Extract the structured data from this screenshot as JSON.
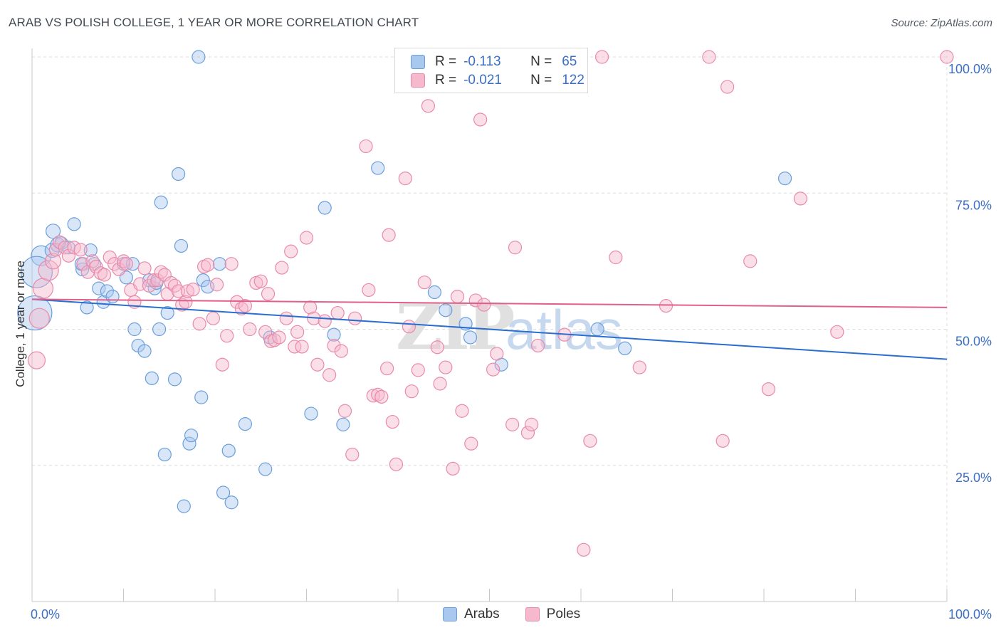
{
  "header": {
    "title": "ARAB VS POLISH COLLEGE, 1 YEAR OR MORE CORRELATION CHART",
    "source": "Source: ZipAtlas.com"
  },
  "watermark": {
    "zip": "ZIP",
    "atlas": "atlas"
  },
  "legend_top": {
    "rows": [
      {
        "r_label": "R =",
        "r_value": "-0.113",
        "n_label": "N =",
        "n_value": "65"
      },
      {
        "r_label": "R =",
        "r_value": "-0.021",
        "n_label": "N =",
        "n_value": "122"
      }
    ]
  },
  "legend_bottom": {
    "items": [
      "Arabs",
      "Poles"
    ]
  },
  "colors": {
    "arabs_fill": "#a8c8f0",
    "arabs_stroke": "#6a9fdc",
    "arabs_line": "#2a6fcf",
    "poles_fill": "#f6b8cc",
    "poles_stroke": "#e98aaa",
    "poles_line": "#e0608a",
    "tick_label": "#3b6fc7",
    "grid": "#dddddd"
  },
  "chart_data": {
    "type": "scatter",
    "title": "ARAB VS POLISH COLLEGE, 1 YEAR OR MORE CORRELATION CHART",
    "xlabel": "",
    "ylabel": "College, 1 year or more",
    "xlim": [
      0,
      100
    ],
    "ylim": [
      0,
      100
    ],
    "x_tick_labels": [
      {
        "value": 0,
        "label": "0.0%"
      },
      {
        "value": 100,
        "label": "100.0%"
      }
    ],
    "y_tick_labels": [
      {
        "value": 25,
        "label": "25.0%"
      },
      {
        "value": 50,
        "label": "50.0%"
      },
      {
        "value": 75,
        "label": "75.0%"
      },
      {
        "value": 100,
        "label": "100.0%"
      }
    ],
    "grid": true,
    "legend_position": "top-center",
    "series": [
      {
        "name": "Arabs",
        "r": -0.113,
        "n": 65,
        "trend": {
          "x": [
            0,
            100
          ],
          "y": [
            55.5,
            44.5
          ]
        },
        "points": [
          [
            1.0,
            63.5,
            14
          ],
          [
            0.5,
            60.5,
            22
          ],
          [
            0.3,
            53.0,
            24
          ],
          [
            2.2,
            64.5,
            10
          ],
          [
            2.3,
            68.0,
            10
          ],
          [
            2.8,
            65.5,
            10
          ],
          [
            3.2,
            65.8,
            9
          ],
          [
            4.0,
            65.0,
            9
          ],
          [
            4.6,
            69.3,
            9
          ],
          [
            5.5,
            61.0,
            9
          ],
          [
            5.4,
            62.0,
            9
          ],
          [
            6.4,
            64.5,
            9
          ],
          [
            6.8,
            62.0,
            9
          ],
          [
            7.3,
            57.5,
            9
          ],
          [
            7.8,
            55.0,
            9
          ],
          [
            6.0,
            54.0,
            9
          ],
          [
            8.2,
            57.0,
            9
          ],
          [
            8.8,
            56.0,
            9
          ],
          [
            10.0,
            62.0,
            9
          ],
          [
            10.3,
            59.5,
            9
          ],
          [
            11.0,
            62.0,
            9
          ],
          [
            11.2,
            50.0,
            9
          ],
          [
            11.6,
            47.0,
            9
          ],
          [
            12.3,
            46.0,
            9
          ],
          [
            12.8,
            59.0,
            9
          ],
          [
            13.1,
            41.0,
            9
          ],
          [
            13.4,
            57.5,
            9
          ],
          [
            13.6,
            58.5,
            9
          ],
          [
            13.9,
            50.0,
            9
          ],
          [
            14.1,
            73.3,
            9
          ],
          [
            14.5,
            27.0,
            9
          ],
          [
            14.8,
            53.0,
            9
          ],
          [
            15.6,
            40.8,
            9
          ],
          [
            16.0,
            78.5,
            9
          ],
          [
            16.3,
            65.3,
            9
          ],
          [
            16.6,
            17.5,
            9
          ],
          [
            17.2,
            29.0,
            9
          ],
          [
            17.4,
            30.5,
            9
          ],
          [
            18.2,
            100.0,
            9
          ],
          [
            18.5,
            37.5,
            9
          ],
          [
            18.7,
            59.0,
            9
          ],
          [
            19.2,
            57.8,
            9
          ],
          [
            20.5,
            62.0,
            9
          ],
          [
            20.9,
            20.0,
            9
          ],
          [
            21.5,
            27.7,
            9
          ],
          [
            21.8,
            18.2,
            9
          ],
          [
            23.3,
            32.6,
            9
          ],
          [
            25.5,
            24.3,
            9
          ],
          [
            26.0,
            48.5,
            9
          ],
          [
            30.5,
            34.5,
            9
          ],
          [
            32.0,
            72.3,
            9
          ],
          [
            33.0,
            49.0,
            9
          ],
          [
            34.0,
            32.5,
            9
          ],
          [
            37.8,
            79.6,
            9
          ],
          [
            44.0,
            56.8,
            9
          ],
          [
            45.2,
            53.5,
            9
          ],
          [
            47.4,
            51.0,
            9
          ],
          [
            47.9,
            48.5,
            9
          ],
          [
            51.3,
            43.5,
            9
          ],
          [
            61.8,
            50.0,
            9
          ],
          [
            64.8,
            46.5,
            9
          ],
          [
            82.3,
            77.7,
            9
          ]
        ]
      },
      {
        "name": "Poles",
        "r": -0.021,
        "n": 122,
        "trend": {
          "x": [
            0,
            100
          ],
          "y": [
            55.5,
            54.0
          ]
        },
        "points": [
          [
            0.5,
            44.3,
            12
          ],
          [
            0.8,
            52.0,
            14
          ],
          [
            1.2,
            57.5,
            14
          ],
          [
            1.8,
            60.8,
            14
          ],
          [
            2.3,
            62.5,
            11
          ],
          [
            2.6,
            64.6,
            9
          ],
          [
            3.0,
            66.0,
            9
          ],
          [
            3.6,
            65.0,
            9
          ],
          [
            4.0,
            63.5,
            9
          ],
          [
            4.6,
            65.0,
            9
          ],
          [
            5.3,
            64.6,
            9
          ],
          [
            5.6,
            62.0,
            9
          ],
          [
            6.1,
            60.5,
            9
          ],
          [
            6.6,
            62.5,
            9
          ],
          [
            7.0,
            61.5,
            9
          ],
          [
            7.5,
            60.3,
            9
          ],
          [
            7.9,
            60.0,
            9
          ],
          [
            8.5,
            63.2,
            9
          ],
          [
            9.0,
            62.0,
            9
          ],
          [
            9.5,
            61.0,
            9
          ],
          [
            10.0,
            62.5,
            9
          ],
          [
            10.3,
            62.0,
            9
          ],
          [
            10.8,
            57.2,
            9
          ],
          [
            11.2,
            55.0,
            9
          ],
          [
            11.8,
            58.3,
            9
          ],
          [
            12.3,
            61.2,
            9
          ],
          [
            12.8,
            58.0,
            9
          ],
          [
            13.3,
            59.0,
            9
          ],
          [
            13.7,
            59.0,
            9
          ],
          [
            14.1,
            60.5,
            9
          ],
          [
            14.5,
            60.0,
            9
          ],
          [
            14.8,
            56.5,
            9
          ],
          [
            15.2,
            58.5,
            9
          ],
          [
            15.6,
            58.0,
            9
          ],
          [
            16.0,
            57.0,
            9
          ],
          [
            16.4,
            54.5,
            9
          ],
          [
            16.8,
            55.0,
            9
          ],
          [
            17.0,
            57.0,
            9
          ],
          [
            17.6,
            57.3,
            9
          ],
          [
            18.3,
            51.0,
            9
          ],
          [
            18.8,
            61.5,
            9
          ],
          [
            19.2,
            61.8,
            9
          ],
          [
            19.8,
            52.0,
            9
          ],
          [
            20.2,
            58.2,
            9
          ],
          [
            20.8,
            43.5,
            9
          ],
          [
            21.3,
            48.8,
            9
          ],
          [
            21.8,
            62.0,
            9
          ],
          [
            22.4,
            55.0,
            9
          ],
          [
            22.9,
            53.8,
            9
          ],
          [
            23.3,
            54.3,
            9
          ],
          [
            23.8,
            50.0,
            9
          ],
          [
            24.5,
            58.5,
            9
          ],
          [
            25.0,
            58.8,
            9
          ],
          [
            25.5,
            49.5,
            9
          ],
          [
            25.8,
            56.5,
            9
          ],
          [
            26.1,
            47.8,
            9
          ],
          [
            26.5,
            48.0,
            9
          ],
          [
            27.0,
            48.5,
            9
          ],
          [
            27.3,
            61.3,
            9
          ],
          [
            27.8,
            52.0,
            9
          ],
          [
            28.3,
            64.3,
            9
          ],
          [
            28.7,
            46.8,
            9
          ],
          [
            29.0,
            49.5,
            9
          ],
          [
            29.5,
            46.8,
            9
          ],
          [
            30.0,
            66.8,
            9
          ],
          [
            30.4,
            54.0,
            9
          ],
          [
            30.8,
            52.0,
            9
          ],
          [
            31.2,
            43.5,
            9
          ],
          [
            32.0,
            51.5,
            9
          ],
          [
            32.5,
            41.6,
            9
          ],
          [
            33.0,
            47.0,
            9
          ],
          [
            33.4,
            53.0,
            9
          ],
          [
            33.8,
            46.0,
            9
          ],
          [
            34.2,
            35.0,
            9
          ],
          [
            35.0,
            27.0,
            9
          ],
          [
            35.3,
            52.0,
            9
          ],
          [
            36.5,
            83.6,
            9
          ],
          [
            36.8,
            57.2,
            9
          ],
          [
            37.3,
            37.8,
            9
          ],
          [
            37.8,
            38.0,
            9
          ],
          [
            38.2,
            37.6,
            9
          ],
          [
            38.8,
            42.8,
            9
          ],
          [
            39.0,
            67.3,
            9
          ],
          [
            39.4,
            33.0,
            9
          ],
          [
            39.8,
            25.2,
            9
          ],
          [
            40.8,
            77.7,
            9
          ],
          [
            41.2,
            50.5,
            9
          ],
          [
            41.5,
            38.6,
            9
          ],
          [
            42.2,
            42.5,
            9
          ],
          [
            42.9,
            58.6,
            9
          ],
          [
            43.3,
            91.0,
            9
          ],
          [
            44.3,
            46.7,
            9
          ],
          [
            44.6,
            40.0,
            9
          ],
          [
            45.2,
            43.0,
            9
          ],
          [
            46.0,
            24.4,
            9
          ],
          [
            46.5,
            56.0,
            9
          ],
          [
            47.0,
            35.0,
            9
          ],
          [
            48.0,
            29.0,
            9
          ],
          [
            48.5,
            55.3,
            9
          ],
          [
            49.0,
            88.5,
            9
          ],
          [
            49.4,
            54.5,
            9
          ],
          [
            50.4,
            42.6,
            9
          ],
          [
            50.8,
            45.5,
            9
          ],
          [
            52.5,
            32.5,
            9
          ],
          [
            52.8,
            65.0,
            9
          ],
          [
            54.2,
            31.0,
            9
          ],
          [
            54.6,
            32.5,
            9
          ],
          [
            55.3,
            47.0,
            9
          ],
          [
            58.2,
            49.0,
            9
          ],
          [
            60.3,
            9.5,
            9
          ],
          [
            61.0,
            29.5,
            9
          ],
          [
            62.3,
            100.0,
            9
          ],
          [
            63.8,
            63.2,
            9
          ],
          [
            66.4,
            43.0,
            9
          ],
          [
            69.3,
            54.3,
            9
          ],
          [
            74.0,
            100.0,
            9
          ],
          [
            75.5,
            29.5,
            9
          ],
          [
            76.0,
            94.5,
            9
          ],
          [
            78.5,
            62.5,
            9
          ],
          [
            80.5,
            39.0,
            9
          ],
          [
            84.0,
            74.0,
            9
          ],
          [
            88.0,
            49.5,
            9
          ],
          [
            100.0,
            100.0,
            9
          ]
        ]
      }
    ]
  }
}
